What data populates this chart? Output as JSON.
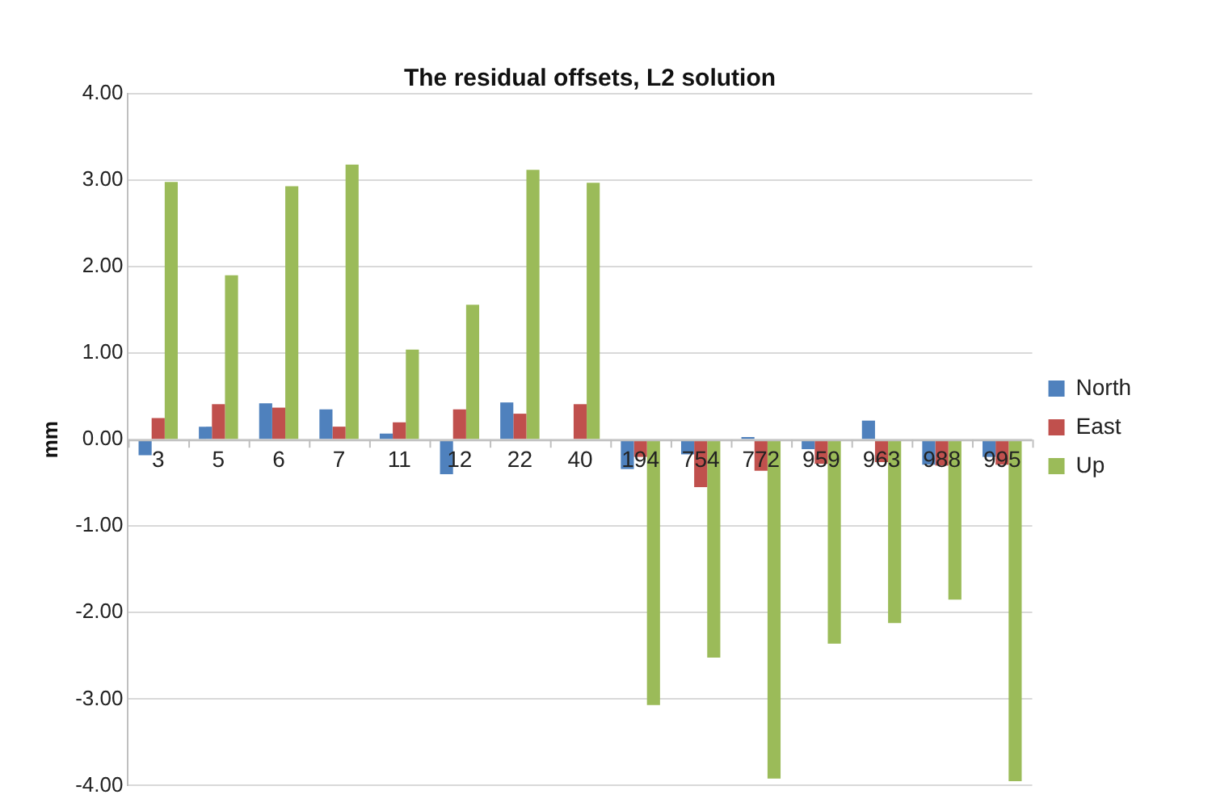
{
  "chart_data": {
    "type": "bar",
    "title": "The residual offsets, L2 solution",
    "ylabel": "mm",
    "categories": [
      "3",
      "5",
      "6",
      "7",
      "11",
      "12",
      "22",
      "40",
      "194",
      "754",
      "772",
      "959",
      "963",
      "988",
      "995"
    ],
    "series": [
      {
        "name": "North",
        "color": "#4f81bd",
        "values": [
          -0.18,
          0.15,
          0.42,
          0.35,
          0.07,
          -0.4,
          0.43,
          0,
          -0.34,
          -0.17,
          0.03,
          -0.11,
          0.22,
          -0.29,
          -0.2
        ]
      },
      {
        "name": "East",
        "color": "#c0504d",
        "values": [
          0.25,
          0.41,
          0.37,
          0.15,
          0.2,
          0.35,
          0.3,
          0.41,
          -0.2,
          -0.55,
          -0.36,
          -0.28,
          -0.26,
          -0.3,
          -0.29
        ]
      },
      {
        "name": "Up",
        "color": "#9bbb59",
        "values": [
          2.98,
          1.9,
          2.93,
          3.18,
          1.04,
          1.56,
          3.12,
          2.97,
          -3.07,
          -2.52,
          -3.92,
          -2.36,
          -2.12,
          -1.85,
          -3.95
        ]
      }
    ],
    "ylim": [
      -4,
      4
    ],
    "yticks": [
      {
        "value": -4,
        "label": "-4.00"
      },
      {
        "value": -3,
        "label": "-3.00"
      },
      {
        "value": -2,
        "label": "-2.00"
      },
      {
        "value": -1,
        "label": "-1.00"
      },
      {
        "value": 0,
        "label": "0.00"
      },
      {
        "value": 1,
        "label": "1.00"
      },
      {
        "value": 2,
        "label": "2.00"
      },
      {
        "value": 3,
        "label": "3.00"
      },
      {
        "value": 4,
        "label": "4.00"
      }
    ],
    "grid": "y",
    "legend": "right"
  }
}
